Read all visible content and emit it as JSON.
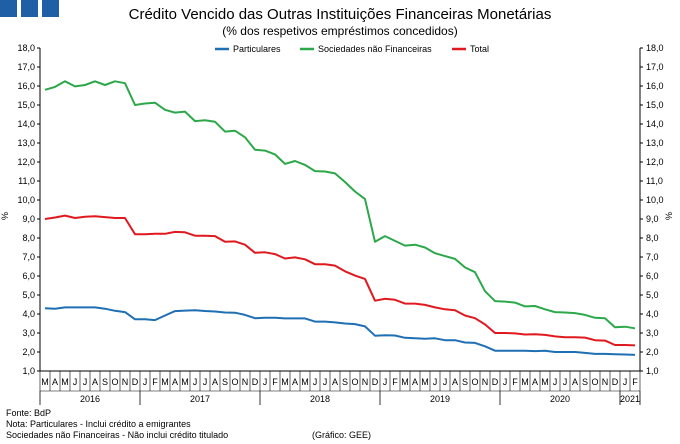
{
  "header": {
    "title": "Crédito Vencido das Outras Instituições Financeiras Monetárias",
    "subtitle": "(% dos respetivos empréstimos concedidos)"
  },
  "footer": {
    "source": "Fonte: BdP",
    "note1": "Nota: Particulares - Inclui crédito a emigrantes",
    "note2": "Sociedades não Financeiras - Não inclui crédito titulado",
    "credit": "(Gráfico: GEE)"
  },
  "colors": {
    "particulares": "#1f6fb4",
    "snf": "#2ca84a",
    "total": "#e0191f",
    "logo": "#1f5fa6"
  },
  "chart_data": {
    "type": "line",
    "ylabel": "%",
    "ylabel_right": "%",
    "ylim": [
      1.0,
      18.0
    ],
    "yticks": [
      "1,0",
      "2,0",
      "3,0",
      "4,0",
      "5,0",
      "6,0",
      "7,0",
      "8,0",
      "9,0",
      "10,0",
      "11,0",
      "12,0",
      "13,0",
      "14,0",
      "15,0",
      "16,0",
      "17,0",
      "18,0"
    ],
    "legend_position": "top",
    "x": [
      "M",
      "A",
      "M",
      "J",
      "J",
      "A",
      "S",
      "O",
      "N",
      "D",
      "J",
      "F",
      "M",
      "A",
      "M",
      "J",
      "J",
      "A",
      "S",
      "O",
      "N",
      "D",
      "J",
      "F",
      "M",
      "A",
      "M",
      "J",
      "J",
      "A",
      "S",
      "O",
      "N",
      "D",
      "J",
      "F",
      "M",
      "A",
      "M",
      "J",
      "J",
      "A",
      "S",
      "O",
      "N",
      "D",
      "J",
      "F",
      "M",
      "A",
      "M",
      "J",
      "J",
      "A",
      "S",
      "O",
      "N",
      "D",
      "J",
      "F"
    ],
    "years": [
      {
        "label": "2016",
        "start": 0,
        "count": 10
      },
      {
        "label": "2017",
        "start": 10,
        "count": 12
      },
      {
        "label": "2018",
        "start": 22,
        "count": 12
      },
      {
        "label": "2019",
        "start": 34,
        "count": 12
      },
      {
        "label": "2020",
        "start": 46,
        "count": 12
      },
      {
        "label": "2021",
        "start": 58,
        "count": 2
      }
    ],
    "series": [
      {
        "name": "Particulares",
        "key": "particulares",
        "values": [
          4.3,
          4.28,
          4.35,
          4.35,
          4.35,
          4.35,
          4.28,
          4.17,
          4.1,
          3.72,
          3.72,
          3.68,
          3.92,
          4.15,
          4.18,
          4.2,
          4.16,
          4.13,
          4.08,
          4.07,
          3.95,
          3.78,
          3.8,
          3.8,
          3.77,
          3.77,
          3.77,
          3.6,
          3.6,
          3.56,
          3.5,
          3.47,
          3.35,
          2.86,
          2.88,
          2.87,
          2.75,
          2.72,
          2.7,
          2.72,
          2.62,
          2.62,
          2.5,
          2.48,
          2.3,
          2.07,
          2.07,
          2.07,
          2.07,
          2.05,
          2.07,
          2.0,
          2.0,
          2.0,
          1.95,
          1.9,
          1.9,
          1.88,
          1.87,
          1.85
        ]
      },
      {
        "name": "Sociedades não Financeiras",
        "key": "snf",
        "values": [
          15.8,
          15.95,
          16.25,
          15.98,
          16.05,
          16.25,
          16.05,
          16.25,
          16.15,
          15.0,
          15.08,
          15.12,
          14.75,
          14.6,
          14.65,
          14.15,
          14.2,
          14.12,
          13.6,
          13.65,
          13.3,
          12.65,
          12.6,
          12.4,
          11.9,
          12.05,
          11.85,
          11.52,
          11.5,
          11.4,
          10.95,
          10.45,
          10.05,
          7.8,
          8.1,
          7.85,
          7.6,
          7.65,
          7.5,
          7.2,
          7.05,
          6.9,
          6.45,
          6.2,
          5.2,
          4.68,
          4.65,
          4.6,
          4.4,
          4.42,
          4.25,
          4.1,
          4.08,
          4.05,
          3.95,
          3.8,
          3.78,
          3.3,
          3.33,
          3.25
        ]
      },
      {
        "name": "Total",
        "key": "total",
        "values": [
          9.0,
          9.08,
          9.18,
          9.05,
          9.12,
          9.15,
          9.1,
          9.05,
          9.05,
          8.2,
          8.2,
          8.22,
          8.22,
          8.32,
          8.3,
          8.12,
          8.12,
          8.1,
          7.8,
          7.82,
          7.65,
          7.22,
          7.25,
          7.15,
          6.92,
          6.98,
          6.88,
          6.62,
          6.62,
          6.55,
          6.25,
          6.02,
          5.85,
          4.7,
          4.8,
          4.75,
          4.55,
          4.55,
          4.48,
          4.35,
          4.25,
          4.2,
          3.92,
          3.78,
          3.45,
          3.0,
          3.0,
          2.98,
          2.92,
          2.93,
          2.9,
          2.82,
          2.78,
          2.78,
          2.76,
          2.62,
          2.6,
          2.37,
          2.37,
          2.35
        ]
      }
    ]
  }
}
